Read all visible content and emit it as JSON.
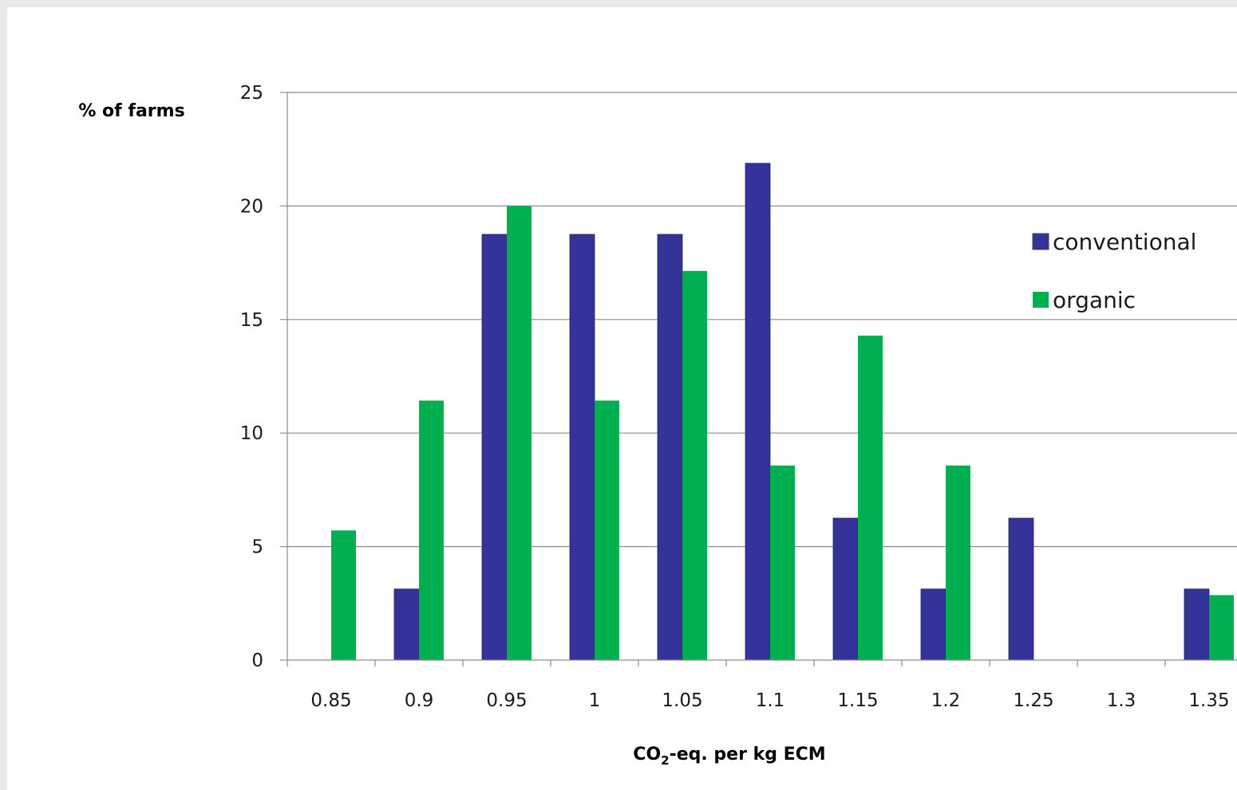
{
  "chart_data": {
    "type": "bar",
    "ylabel": "% of farms",
    "xlabel": {
      "prefix": "CO",
      "subscript": "2",
      "suffix": "-eq. per kg ECM"
    },
    "categories": [
      "0.85",
      "0.9",
      "0.95",
      "1",
      "1.05",
      "1.1",
      "1.15",
      "1.2",
      "1.25",
      "1.3",
      "1.35"
    ],
    "ylim": [
      0,
      25
    ],
    "yticks": [
      "0",
      "5",
      "10",
      "15",
      "20",
      "25"
    ],
    "grid": true,
    "legend_position": "right",
    "series": [
      {
        "name": "conventional",
        "color": "#333399",
        "values": [
          0,
          3.13,
          18.75,
          18.75,
          18.75,
          21.88,
          6.25,
          3.13,
          6.25,
          0,
          3.13
        ]
      },
      {
        "name": "organic",
        "color": "#00b050",
        "values": [
          5.71,
          11.43,
          20.0,
          11.43,
          17.14,
          8.57,
          14.29,
          8.57,
          0,
          0,
          2.86
        ]
      }
    ]
  }
}
